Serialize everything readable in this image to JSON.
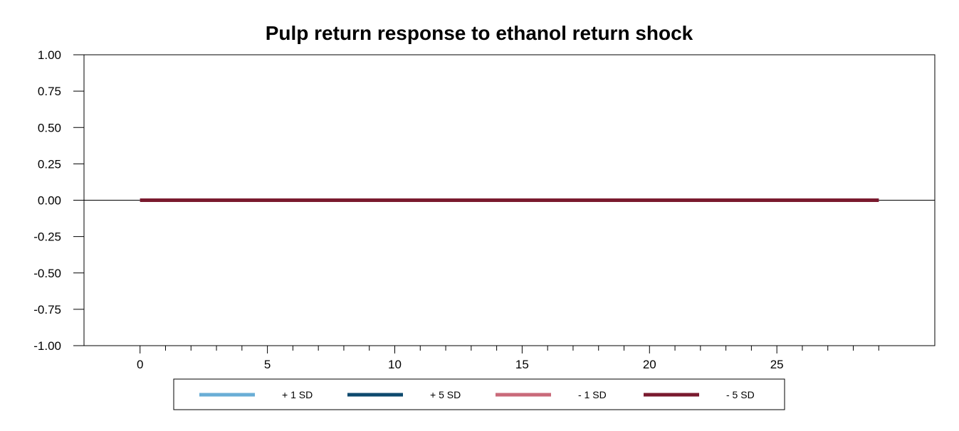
{
  "chart_data": {
    "type": "line",
    "title": "Pulp return response to ethanol return shock",
    "xlabel": "",
    "ylabel": "",
    "xlim": [
      -2.2,
      31.2
    ],
    "ylim": [
      -1.0,
      1.0
    ],
    "x_ticks": [
      0,
      5,
      10,
      15,
      20,
      25
    ],
    "x_tick_labels": [
      "0",
      "5",
      "10",
      "15",
      "20",
      "25"
    ],
    "y_ticks": [
      1.0,
      0.75,
      0.5,
      0.25,
      0.0,
      -0.25,
      -0.5,
      -0.75,
      -1.0
    ],
    "y_tick_labels": [
      "1.00",
      "0.75",
      "0.50",
      "0.25",
      "0.00",
      "-0.25",
      "-0.50",
      "-0.75",
      "-1.00"
    ],
    "x": [
      0,
      29
    ],
    "series": [
      {
        "name": "+ 1 SD",
        "color": "#6aaed6",
        "values": [
          0,
          0
        ]
      },
      {
        "name": "+ 5 SD",
        "color": "#0e4a6e",
        "values": [
          0,
          0
        ]
      },
      {
        "name": "- 1 SD",
        "color": "#c96a7a",
        "values": [
          0,
          0
        ]
      },
      {
        "name": "- 5 SD",
        "color": "#7a1a2e",
        "values": [
          0,
          0
        ]
      }
    ],
    "zero_line": true,
    "legend_position": "bottom"
  }
}
